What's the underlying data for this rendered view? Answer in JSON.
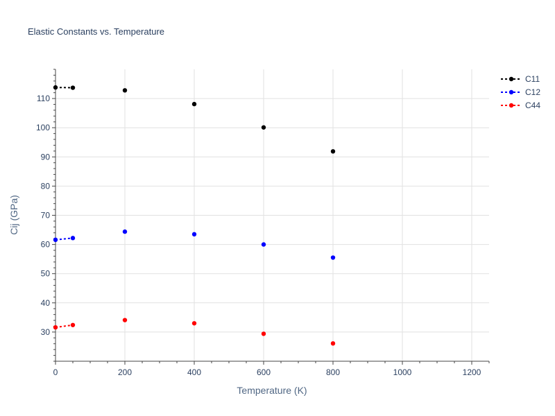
{
  "chart_data": {
    "type": "scatter",
    "title": "Elastic Constants vs. Temperature",
    "xlabel": "Temperature (K)",
    "ylabel": "Cij (GPa)",
    "xlim": [
      0,
      1250
    ],
    "ylim": [
      20,
      120
    ],
    "x_ticks": [
      0,
      200,
      400,
      600,
      800,
      1000,
      1200
    ],
    "y_ticks": [
      30,
      40,
      50,
      60,
      70,
      80,
      90,
      100,
      110
    ],
    "x_grid": true,
    "y_grid": true,
    "legend_position": "top-right",
    "series": [
      {
        "name": "C11",
        "color": "#000000",
        "x": [
          0,
          50,
          200,
          400,
          600,
          800
        ],
        "y": [
          113.8,
          113.7,
          112.8,
          108.1,
          100.1,
          91.9
        ],
        "extrapolation": {
          "x": [
            0,
            50
          ],
          "y": [
            113.8,
            113.7
          ]
        }
      },
      {
        "name": "C12",
        "color": "#0000ff",
        "x": [
          0,
          50,
          200,
          400,
          600,
          800
        ],
        "y": [
          61.6,
          62.2,
          64.4,
          63.5,
          60.0,
          55.5
        ],
        "extrapolation": {
          "x": [
            0,
            50
          ],
          "y": [
            61.6,
            62.2
          ]
        }
      },
      {
        "name": "C44",
        "color": "#ff0000",
        "x": [
          0,
          50,
          200,
          400,
          600,
          800
        ],
        "y": [
          31.6,
          32.4,
          34.1,
          33.0,
          29.4,
          26.1
        ],
        "extrapolation": {
          "x": [
            0,
            50
          ],
          "y": [
            31.6,
            32.4
          ]
        }
      }
    ]
  }
}
